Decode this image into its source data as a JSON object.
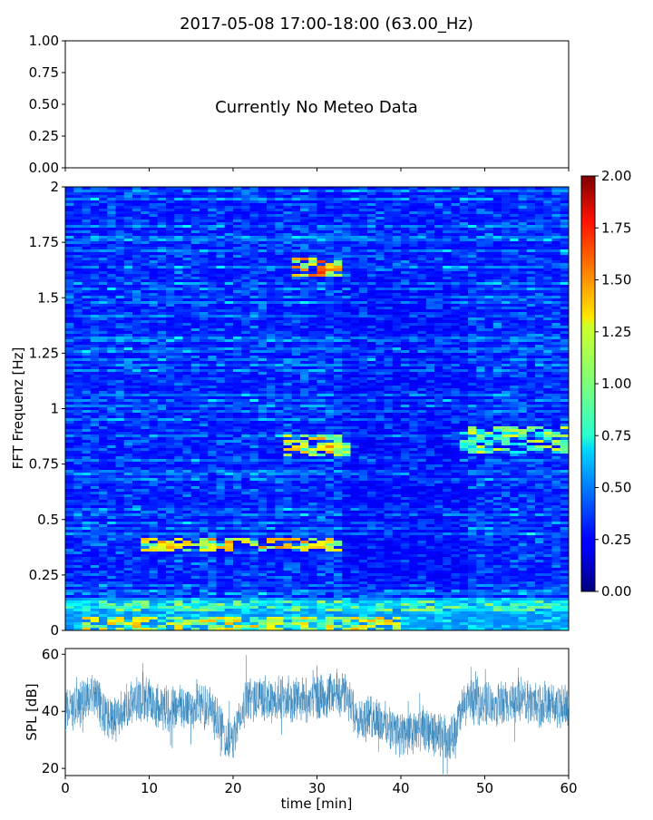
{
  "title": "2017-05-08 17:00-18:00 (63.00_Hz)",
  "chart_data": [
    {
      "type": "line",
      "panel": "meteo",
      "annotation": "Currently No Meteo Data",
      "ylim": [
        0,
        1
      ],
      "yticks": [
        "1.00",
        "0.75",
        "0.50",
        "0.25",
        "0.00"
      ],
      "xlim": [
        0,
        60
      ],
      "series": []
    },
    {
      "type": "heatmap",
      "panel": "spectrogram",
      "ylabel": "FFT Frequenz [Hz]",
      "ylim": [
        0,
        2
      ],
      "yticks": [
        "2",
        "1.75",
        "1.5",
        "1.25",
        "1",
        "0.75",
        "0.5",
        "0.25",
        "0"
      ],
      "xlim": [
        0,
        60
      ],
      "colormap": "jet",
      "colorbar": {
        "range": [
          0,
          2
        ],
        "ticks": [
          "2.00",
          "1.75",
          "1.50",
          "1.25",
          "1.00",
          "0.75",
          "0.50",
          "0.25",
          "0.00"
        ]
      },
      "hotspots": [
        {
          "t": [
            2,
            40
          ],
          "f": [
            0.0,
            0.06
          ],
          "level": 1.4
        },
        {
          "t": [
            9,
            33
          ],
          "f": [
            0.36,
            0.42
          ],
          "level": 1.5
        },
        {
          "t": [
            26,
            34
          ],
          "f": [
            0.78,
            0.88
          ],
          "level": 1.5
        },
        {
          "t": [
            27,
            33
          ],
          "f": [
            1.6,
            1.68
          ],
          "level": 1.7
        },
        {
          "t": [
            47,
            60
          ],
          "f": [
            0.8,
            0.92
          ],
          "level": 1.2
        },
        {
          "t": [
            0,
            60
          ],
          "f": [
            0.08,
            0.14
          ],
          "level": 1.1
        }
      ]
    },
    {
      "type": "line",
      "panel": "spl",
      "ylabel": "SPL [dB]",
      "xlabel": "time [min]",
      "xlim": [
        0,
        60
      ],
      "ylim": [
        17.5,
        62
      ],
      "xticks": [
        "0",
        "10",
        "20",
        "30",
        "40",
        "50",
        "60"
      ],
      "yticks": [
        "60",
        "40",
        "20"
      ],
      "color": "#1f77b4",
      "series": [
        {
          "x": [
            0,
            2,
            3.5,
            4.5,
            6,
            8,
            10,
            12,
            14,
            16,
            17.5,
            18.5,
            19.5,
            20.5,
            21.5,
            23,
            25,
            27,
            29,
            31,
            33,
            34,
            35.5,
            37,
            39,
            41,
            43,
            45,
            46,
            47,
            48,
            50,
            52,
            54,
            56,
            58,
            60
          ],
          "y": [
            41,
            43,
            47,
            39,
            37,
            43,
            44,
            41,
            42,
            42,
            40,
            35,
            28,
            34,
            44,
            45,
            44,
            45,
            44,
            46,
            47,
            42,
            37,
            38,
            33,
            32,
            33,
            31,
            30,
            38,
            44,
            43,
            42,
            44,
            43,
            42,
            41
          ]
        }
      ]
    }
  ]
}
